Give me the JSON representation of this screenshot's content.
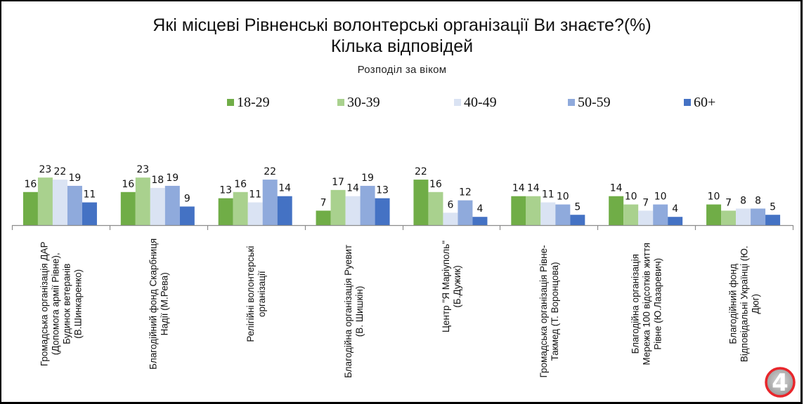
{
  "chart_data": {
    "type": "bar",
    "title": "Які місцеві Рівненські волонтерські організації Ви знаєте?(%)",
    "title_line2": "Кілька відповідей",
    "subtitle": "Розподіл за віком",
    "xlabel": "",
    "ylabel": "",
    "ylim": [
      0,
      25
    ],
    "grid": false,
    "legend_position": "top",
    "categories": [
      [
        "Громадська організація ДАР",
        "(Допомога армії Рівне),",
        "Будинок ветеранів",
        "(В.Шинкаренко)"
      ],
      [
        "Благодійний фонд Скарбниця",
        "Надії (М.Рева)"
      ],
      [
        "Релігійні волонтерські",
        "організації"
      ],
      [
        "Благодійна організація Руевит",
        "(В. Шишкін)"
      ],
      [
        "Центр \"Я Маріуполь\"",
        "(Б.Дужик)"
      ],
      [
        "Громадська організація Рівне-",
        "Такмед (Т. Воронцова)"
      ],
      [
        "Благодійна організація",
        "Мережа 100 відсотків життя",
        "Рівне (Ю.Лазаревич)"
      ],
      [
        "Благодійний фонд",
        "Відповідальні Українці (Ю.",
        "Дюг)"
      ]
    ],
    "series": [
      {
        "name": "18-29",
        "color": "#70AD47",
        "values": [
          16,
          16,
          13,
          7,
          22,
          14,
          14,
          10
        ]
      },
      {
        "name": "30-39",
        "color": "#A9D18E",
        "values": [
          23,
          23,
          16,
          17,
          16,
          14,
          10,
          7
        ]
      },
      {
        "name": "40-49",
        "color": "#DAE3F3",
        "values": [
          22,
          18,
          11,
          14,
          6,
          11,
          7,
          8
        ]
      },
      {
        "name": "50-59",
        "color": "#8FAADC",
        "values": [
          19,
          19,
          22,
          19,
          12,
          10,
          10,
          8
        ]
      },
      {
        "name": "60+",
        "color": "#4472C4",
        "values": [
          11,
          9,
          14,
          13,
          4,
          5,
          4,
          5
        ]
      }
    ]
  },
  "logo": {
    "text": "4",
    "ring_color": "#E8262B"
  }
}
